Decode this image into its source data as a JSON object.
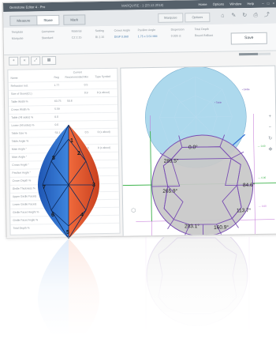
{
  "window": {
    "title": "Gemstone Editor 4 - Pro",
    "center_caption": "MARQUISE - 1 (23.12.2018)",
    "menus": [
      "Home",
      "Options",
      "Window",
      "Help"
    ],
    "controls": [
      "–",
      "□",
      "×"
    ]
  },
  "tabs": [
    {
      "label": "Measure"
    },
    {
      "label": "Stone"
    },
    {
      "label": "Mark"
    }
  ],
  "toolbar": {
    "btn_a": "Marquise",
    "btn_b": "Options"
  },
  "params": {
    "labels": [
      "Template",
      "Gemstone",
      "Material",
      "Setting",
      "Crown Angle",
      "Pavilion Angle",
      "Dispersion",
      "Total Depth"
    ],
    "values": [
      "Marquise",
      "Standard",
      "CZ 2.15",
      "RI 2.15",
      "DISP 0.060",
      "1.75 x 3.51 MM",
      "0.005 ct",
      "Round Brilliant"
    ],
    "save_label": "Save",
    "progress": 0.6
  },
  "table": {
    "group_header": "Current",
    "columns": [
      "Name",
      "Reg",
      "Recommended",
      "Min",
      "Type Symbol"
    ],
    "rows": [
      {
        "name": "Refraction Ind.",
        "v": [
          "1.77",
          "",
          "0.5",
          ""
        ]
      },
      {
        "name": "Size of Stone(Ct.)",
        "v": [
          "",
          "",
          "0.9",
          "0 (x about)"
        ]
      },
      {
        "name": "Table Width %",
        "v": [
          "63.75",
          "50.8",
          "",
          ""
        ]
      },
      {
        "name": "Crown Width %",
        "v": [
          "5.59",
          "",
          "",
          ""
        ]
      },
      {
        "name": "Table (All sides) %",
        "v": [
          "0.0",
          "",
          "",
          ""
        ]
      },
      {
        "name": "Lower (All sides) %",
        "v": [
          "0.0",
          "",
          "",
          ""
        ]
      },
      {
        "name": "Table Size %",
        "v": [
          "53.1",
          "",
          "0.5",
          "0 (x about)"
        ]
      },
      {
        "name": "Table Angle %",
        "v": [
          "26.5",
          "",
          "",
          ""
        ]
      },
      {
        "name": "Main Angle °",
        "v": [
          "43.0",
          "",
          "1.5",
          "0 (x about)"
        ]
      },
      {
        "name": "Main Angle °",
        "v": [
          "",
          "",
          "",
          ""
        ]
      },
      {
        "name": "Crown Angle °",
        "v": [
          "",
          "",
          "",
          ""
        ]
      },
      {
        "name": "Pavilion Angle °",
        "v": [
          "",
          "",
          "",
          ""
        ]
      },
      {
        "name": "Crown Depth %",
        "v": [
          "",
          "",
          "",
          ""
        ]
      },
      {
        "name": "Girdle Thickness %",
        "v": [
          "",
          "",
          "",
          ""
        ]
      },
      {
        "name": "Upper Girdle Facets",
        "v": [
          "",
          "",
          "",
          ""
        ]
      },
      {
        "name": "Lower Girdle Facets",
        "v": [
          "",
          "",
          "",
          ""
        ]
      },
      {
        "name": "Girdle Facet Height %",
        "v": [
          "",
          "",
          "",
          ""
        ]
      },
      {
        "name": "Girdle Facet Angle %",
        "v": [
          "",
          "",
          "",
          ""
        ]
      },
      {
        "name": "Total Depth %",
        "v": [
          "",
          "",
          "",
          ""
        ]
      }
    ]
  },
  "viewport": {
    "facet_angles": [
      "0.0°",
      "289.5°",
      "265.9°",
      "84.6°",
      "113.7°",
      "203.1°",
      "160.9°"
    ],
    "colors": {
      "top_circle": "#9fd2ea",
      "bottom_circle": "#c8c8c8",
      "outline": "#7a4fb3",
      "axis_green": "#3bb34a",
      "pointer_blue": "#2f6fd6"
    }
  },
  "gem": {
    "facet_numbers": [
      "1",
      "2",
      "3",
      "4",
      "5",
      "6",
      "7",
      "8"
    ],
    "colors": {
      "left": "#2f6dcf",
      "right": "#e2512c"
    }
  }
}
